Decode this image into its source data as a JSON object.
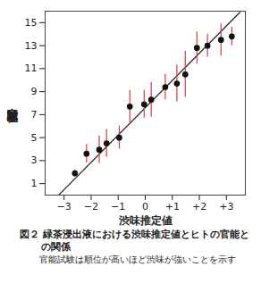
{
  "chart_data": {
    "type": "scatter",
    "title": "図２ 緑茶浸出液における渋味推定値とヒトの官能との関係",
    "subtitle": "官能試験は順位が高いほど渋味が強いことを示す",
    "x_label": "渋味推定値",
    "y_label": "官能試験順位",
    "x": [
      -2.6,
      -2.17,
      -1.7,
      -1.43,
      -0.96,
      -0.57,
      -0.04,
      0.22,
      0.74,
      1.17,
      1.48,
      1.91,
      2.3,
      2.8,
      3.2
    ],
    "values": [
      1.9,
      3.6,
      3.95,
      4.5,
      5.0,
      7.7,
      7.9,
      8.3,
      9.4,
      9.7,
      10.5,
      12.8,
      13.0,
      13.5,
      13.8
    ],
    "errors": [
      0.3,
      0.8,
      1.2,
      1.2,
      1.0,
      1.4,
      1.2,
      1.5,
      1.1,
      1.6,
      2.0,
      1.4,
      1.0,
      1.4,
      0.8
    ],
    "color": "#111111",
    "fit_line": {
      "x": [
        -3.2,
        3.5
      ],
      "y": [
        0.0,
        15.9
      ]
    },
    "xlim": [
      -3.7,
      3.7
    ],
    "ylim": [
      0,
      16
    ],
    "xticks": [
      {
        "value": -3,
        "label": "−3"
      },
      {
        "value": -2,
        "label": "−2"
      },
      {
        "value": -1,
        "label": "−1"
      },
      0,
      {
        "value": 1,
        "label": "+1"
      },
      {
        "value": 2,
        "label": "+2"
      },
      {
        "value": 3,
        "label": "+3"
      }
    ],
    "yticks": [
      1,
      3,
      5,
      7,
      9,
      11,
      13,
      15
    ],
    "grid": false
  }
}
